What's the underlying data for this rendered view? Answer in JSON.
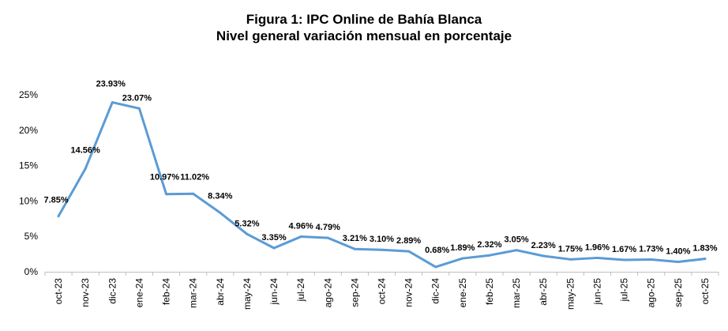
{
  "chart_data": {
    "type": "line",
    "title": "Figura 1: IPC Online de Bahía Blanca",
    "subtitle": "Nivel general variación mensual en porcentaje",
    "categories": [
      "oct-23",
      "nov-23",
      "dic-23",
      "ene-24",
      "feb-24",
      "mar-24",
      "abr-24",
      "may-24",
      "jun-24",
      "jul-24",
      "ago-24",
      "sep-24",
      "oct-24",
      "nov-24",
      "dic-24",
      "ene-25",
      "feb-25",
      "mar-25",
      "abr-25",
      "may-25",
      "jun-25",
      "jul-25",
      "ago-25",
      "sep-25",
      "oct-25"
    ],
    "series": [
      {
        "values": [
          7.85,
          14.56,
          23.93,
          23.07,
          10.97,
          11.02,
          8.34,
          5.32,
          3.35,
          4.96,
          4.79,
          3.21,
          3.1,
          2.89,
          0.68,
          1.89,
          2.32,
          3.05,
          2.23,
          1.75,
          1.96,
          1.67,
          1.73,
          1.4,
          1.83
        ],
        "data_labels": [
          "7.85%",
          "14.56%",
          "23.93%",
          "23.07%",
          "10.97%",
          "11.02%",
          "8.34%",
          "5.32%",
          "3.35%",
          "4.96%",
          "4.79%",
          "3.21%",
          "3.10%",
          "2.89%",
          "0.68%",
          "1.89%",
          "2.32%",
          "3.05%",
          "2.23%",
          "1.75%",
          "1.96%",
          "1.67%",
          "1.73%",
          "1.40%",
          "1.83%"
        ]
      }
    ],
    "y_ticks": [
      0,
      5,
      10,
      15,
      20,
      25
    ],
    "y_tick_labels": [
      "0%",
      "5%",
      "10%",
      "15%",
      "20%",
      "25%"
    ],
    "ylim": [
      0,
      25
    ],
    "grid": false,
    "legend": "none",
    "colors": {
      "line": "#5B9BD5",
      "text": "#000000"
    }
  }
}
